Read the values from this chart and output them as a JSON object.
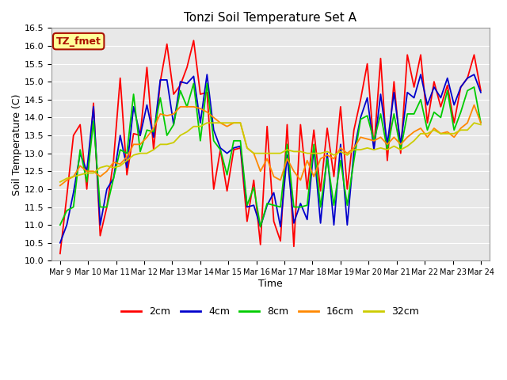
{
  "title": "Tonzi Soil Temperature Set A",
  "xlabel": "Time",
  "ylabel": "Soil Temperature (C)",
  "label_text": "TZ_fmet",
  "ylim": [
    10.0,
    16.5
  ],
  "yticks": [
    10.0,
    10.5,
    11.0,
    11.5,
    12.0,
    12.5,
    13.0,
    13.5,
    14.0,
    14.5,
    15.0,
    15.5,
    16.0,
    16.5
  ],
  "line_colors": {
    "2cm": "#FF0000",
    "4cm": "#0000CC",
    "8cm": "#00CC00",
    "16cm": "#FF8800",
    "32cm": "#CCCC00"
  },
  "legend_labels": [
    "2cm",
    "4cm",
    "8cm",
    "16cm",
    "32cm"
  ],
  "x_tick_labels": [
    "Mar 9",
    "Mar 10",
    "Mar 11",
    "Mar 12",
    "Mar 13",
    "Mar 14",
    "Mar 15",
    "Mar 16",
    "Mar 17",
    "Mar 18",
    "Mar 19",
    "Mar 20",
    "Mar 21",
    "Mar 22",
    "Mar 23",
    "Mar 24"
  ],
  "background_color": "#E8E8E8",
  "annotation_bg": "#FFFF99",
  "annotation_border": "#AA1100",
  "series_2cm": [
    10.2,
    11.8,
    13.5,
    13.8,
    12.0,
    14.4,
    10.7,
    11.5,
    12.8,
    15.1,
    12.4,
    13.55,
    13.5,
    15.4,
    13.1,
    15.0,
    16.05,
    14.65,
    14.9,
    15.4,
    16.15,
    14.65,
    14.7,
    12.0,
    13.1,
    11.95,
    13.1,
    13.15,
    11.1,
    12.25,
    10.45,
    13.75,
    11.1,
    10.55,
    13.8,
    10.4,
    13.8,
    12.0,
    13.65,
    11.95,
    13.7,
    12.35,
    14.3,
    12.0,
    13.65,
    14.5,
    15.5,
    13.15,
    15.65,
    12.8,
    15.0,
    13.0,
    15.75,
    14.85,
    15.75,
    13.85,
    15.0,
    14.3,
    14.9,
    13.85,
    14.85,
    15.1,
    15.75,
    14.75
  ],
  "series_4cm": [
    10.5,
    11.0,
    11.9,
    13.0,
    12.5,
    14.3,
    11.0,
    12.0,
    12.3,
    13.5,
    12.6,
    14.3,
    13.5,
    14.35,
    13.45,
    15.05,
    15.05,
    13.8,
    15.0,
    14.95,
    15.15,
    13.85,
    15.2,
    13.65,
    13.15,
    13.0,
    13.15,
    13.2,
    11.5,
    11.55,
    10.95,
    11.55,
    11.9,
    10.95,
    12.95,
    11.05,
    11.6,
    11.15,
    13.15,
    11.05,
    13.0,
    11.0,
    13.25,
    11.0,
    13.05,
    14.0,
    14.55,
    13.1,
    14.65,
    13.25,
    14.7,
    13.25,
    14.7,
    14.55,
    15.2,
    14.35,
    14.85,
    14.55,
    15.1,
    14.35,
    14.85,
    15.1,
    15.2,
    14.7
  ],
  "series_8cm": [
    11.0,
    11.4,
    11.5,
    13.1,
    12.2,
    13.9,
    11.5,
    11.5,
    12.3,
    13.1,
    13.0,
    14.65,
    13.05,
    13.65,
    13.6,
    14.55,
    13.5,
    13.8,
    14.75,
    14.3,
    14.95,
    13.35,
    14.95,
    13.35,
    13.1,
    12.4,
    13.35,
    13.35,
    11.55,
    12.05,
    10.95,
    11.6,
    11.55,
    11.5,
    13.25,
    11.5,
    11.5,
    11.55,
    13.25,
    11.5,
    12.85,
    11.55,
    12.8,
    11.55,
    12.8,
    13.95,
    14.05,
    13.35,
    14.1,
    13.1,
    14.1,
    13.1,
    14.1,
    14.1,
    14.5,
    13.65,
    14.15,
    14.0,
    14.75,
    13.65,
    14.15,
    14.75,
    14.85,
    13.85
  ],
  "series_16cm": [
    12.1,
    12.25,
    12.35,
    12.65,
    12.5,
    12.5,
    12.35,
    12.5,
    12.75,
    12.7,
    12.9,
    13.25,
    13.25,
    13.45,
    13.7,
    14.1,
    14.05,
    14.1,
    14.3,
    14.3,
    14.3,
    14.25,
    14.15,
    14.0,
    13.85,
    13.75,
    13.85,
    13.85,
    13.15,
    13.0,
    12.5,
    12.85,
    12.35,
    12.25,
    12.85,
    12.5,
    12.25,
    12.8,
    12.35,
    12.85,
    12.95,
    12.85,
    13.15,
    13.0,
    13.15,
    13.45,
    13.4,
    13.35,
    13.45,
    13.25,
    13.45,
    13.25,
    13.45,
    13.6,
    13.7,
    13.45,
    13.7,
    13.55,
    13.6,
    13.45,
    13.7,
    13.85,
    14.35,
    13.85
  ],
  "series_32cm": [
    12.2,
    12.3,
    12.35,
    12.4,
    12.45,
    12.45,
    12.6,
    12.65,
    12.6,
    12.65,
    12.8,
    12.95,
    13.0,
    13.0,
    13.1,
    13.25,
    13.25,
    13.3,
    13.5,
    13.6,
    13.75,
    13.75,
    13.85,
    13.85,
    13.85,
    13.85,
    13.85,
    13.85,
    13.15,
    13.0,
    13.0,
    13.0,
    13.0,
    13.0,
    13.1,
    13.05,
    13.05,
    13.0,
    13.0,
    13.0,
    13.05,
    12.95,
    13.05,
    12.95,
    13.1,
    13.1,
    13.15,
    13.1,
    13.15,
    13.1,
    13.2,
    13.1,
    13.2,
    13.35,
    13.55,
    13.55,
    13.65,
    13.55,
    13.55,
    13.55,
    13.65,
    13.65,
    13.85,
    13.8
  ]
}
